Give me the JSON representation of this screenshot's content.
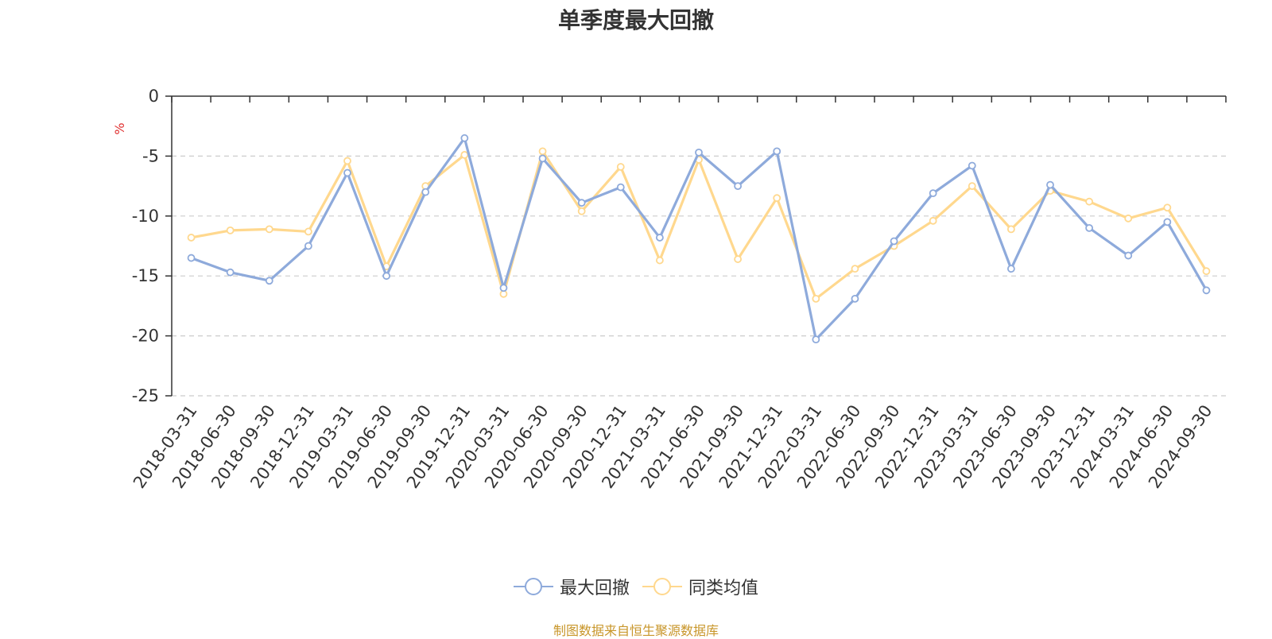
{
  "chart_data": {
    "type": "line",
    "title": "单季度最大回撤",
    "ylabel": "%",
    "ylim": [
      -25,
      0
    ],
    "yticks": [
      0,
      -5,
      -10,
      -15,
      -20,
      -25
    ],
    "grid": true,
    "legend_position": "bottom-center",
    "categories": [
      "2018-03-31",
      "2018-06-30",
      "2018-09-30",
      "2018-12-31",
      "2019-03-31",
      "2019-06-30",
      "2019-09-30",
      "2019-12-31",
      "2020-03-31",
      "2020-06-30",
      "2020-09-30",
      "2020-12-31",
      "2021-03-31",
      "2021-06-30",
      "2021-09-30",
      "2021-12-31",
      "2022-03-31",
      "2022-06-30",
      "2022-09-30",
      "2022-12-31",
      "2023-03-31",
      "2023-06-30",
      "2023-09-30",
      "2023-12-31",
      "2024-03-31",
      "2024-06-30",
      "2024-09-30"
    ],
    "series": [
      {
        "name": "最大回撤",
        "color": "#8eaadb",
        "values": [
          -13.5,
          -14.7,
          -15.4,
          -12.5,
          -6.4,
          -15.0,
          -8.0,
          -3.5,
          -16.0,
          -5.2,
          -8.9,
          -7.6,
          -11.8,
          -4.7,
          -7.5,
          -4.6,
          -20.3,
          -16.9,
          -12.1,
          -8.1,
          -5.8,
          -14.4,
          -7.4,
          -11.0,
          -13.3,
          -10.5,
          -16.2
        ]
      },
      {
        "name": "同类均值",
        "color": "#ffd88e",
        "values": [
          -11.8,
          -11.2,
          -11.1,
          -11.3,
          -5.4,
          -14.2,
          -7.5,
          -4.9,
          -16.5,
          -4.6,
          -9.6,
          -5.9,
          -13.7,
          -5.3,
          -13.6,
          -8.5,
          -16.9,
          -14.4,
          -12.5,
          -10.4,
          -7.5,
          -11.1,
          -7.9,
          -8.8,
          -10.2,
          -9.3,
          -14.6
        ]
      }
    ]
  },
  "legend": {
    "series_1": "最大回撤",
    "series_2": "同类均值"
  },
  "source_note": "制图数据来自恒生聚源数据库"
}
